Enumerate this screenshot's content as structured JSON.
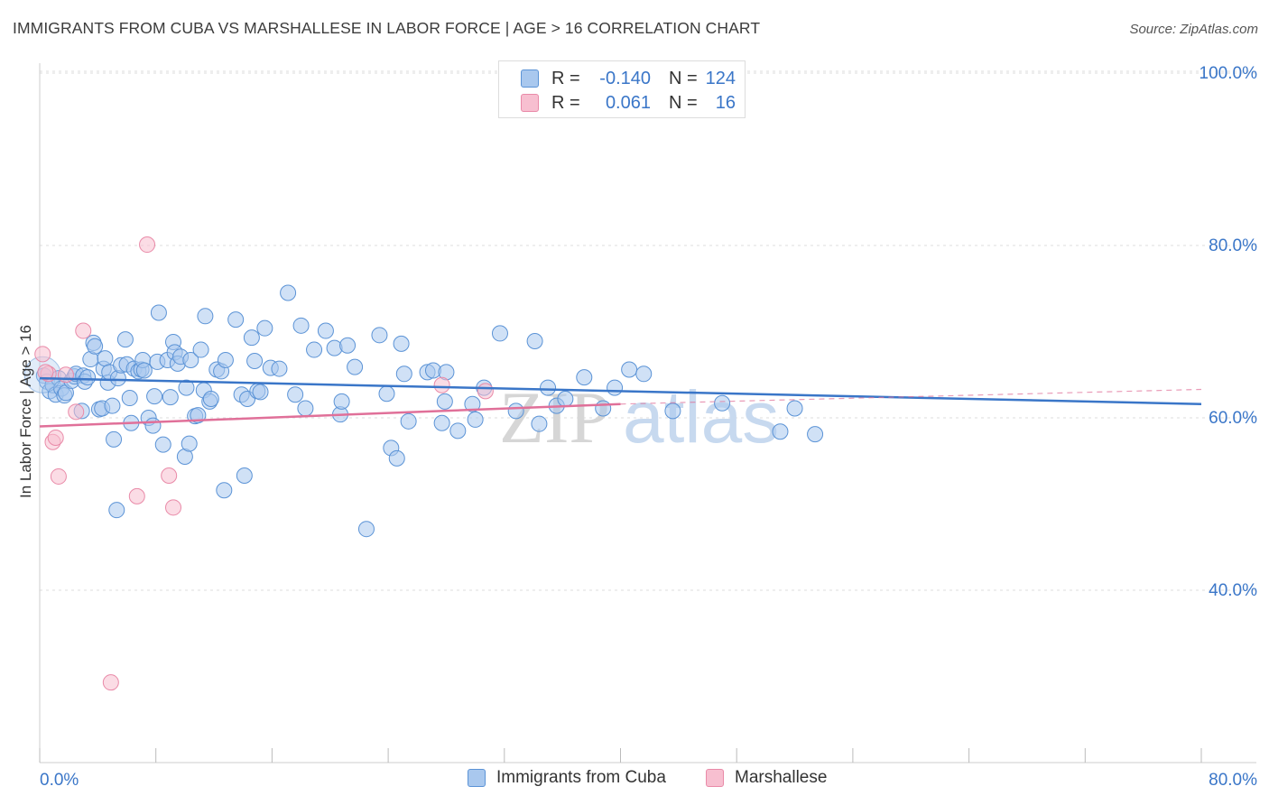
{
  "header": {
    "title": "IMMIGRANTS FROM CUBA VS MARSHALLESE IN LABOR FORCE | AGE > 16 CORRELATION CHART",
    "source": "Source: ZipAtlas.com"
  },
  "legend": {
    "rows": [
      {
        "r_label": "R =",
        "r_value": "-0.140",
        "n_label": "N =",
        "n_value": "124"
      },
      {
        "r_label": "R =",
        "r_value": "0.061",
        "n_label": "N =",
        "n_value": "16"
      }
    ]
  },
  "bottom_legend": [
    "Immigrants from Cuba",
    "Marshallese"
  ],
  "watermark": {
    "zip": "ZIP",
    "atlas": "atlas"
  },
  "colors": {
    "cuba_fill": "#a9c8ee",
    "cuba_stroke": "#5b93d6",
    "cuba_line": "#3a76c8",
    "marsh_fill": "#f7bfd0",
    "marsh_stroke": "#e98aa8",
    "marsh_line": "#e07099",
    "axis_text": "#3a76c8",
    "grid": "#dddddd"
  },
  "chart_data": {
    "type": "scatter",
    "title": "IMMIGRANTS FROM CUBA VS MARSHALLESE IN LABOR FORCE | AGE > 16 CORRELATION CHART",
    "ylabel": "In Labor Force | Age > 16",
    "xlabel": "",
    "xlim": [
      0,
      80
    ],
    "ylim": [
      22,
      104
    ],
    "x_tick_labels": [
      "0.0%",
      "80.0%"
    ],
    "y_ticks": [
      40,
      60,
      80,
      100
    ],
    "y_tick_labels": [
      "40.0%",
      "60.0%",
      "80.0%",
      "100.0%"
    ],
    "grid": true,
    "legend_position": "top-center",
    "series": [
      {
        "name": "Immigrants from Cuba",
        "r": -0.14,
        "n": 124,
        "trend": {
          "x": [
            0,
            80
          ],
          "y": [
            64.6,
            61.6
          ]
        },
        "points": [
          [
            0.3,
            64.9
          ],
          [
            0.5,
            64.2
          ],
          [
            0.7,
            63.1
          ],
          [
            0.9,
            63.8
          ],
          [
            1.1,
            62.7
          ],
          [
            1.3,
            64.6
          ],
          [
            1.5,
            63.4
          ],
          [
            1.7,
            62.6
          ],
          [
            1.8,
            62.9
          ],
          [
            2.2,
            64.3
          ],
          [
            2.4,
            64.8
          ],
          [
            2.5,
            65.1
          ],
          [
            2.9,
            60.8
          ],
          [
            3.0,
            64.9
          ],
          [
            3.1,
            64.2
          ],
          [
            3.3,
            64.7
          ],
          [
            3.5,
            66.8
          ],
          [
            3.7,
            68.7
          ],
          [
            3.8,
            68.3
          ],
          [
            4.1,
            61.0
          ],
          [
            4.3,
            61.1
          ],
          [
            4.4,
            65.7
          ],
          [
            4.5,
            66.9
          ],
          [
            4.7,
            64.1
          ],
          [
            4.8,
            65.3
          ],
          [
            5.0,
            61.4
          ],
          [
            5.1,
            57.5
          ],
          [
            5.3,
            49.3
          ],
          [
            5.4,
            64.6
          ],
          [
            5.6,
            66.1
          ],
          [
            5.9,
            69.1
          ],
          [
            6.0,
            66.2
          ],
          [
            6.2,
            62.3
          ],
          [
            6.3,
            59.4
          ],
          [
            6.5,
            65.7
          ],
          [
            6.8,
            65.4
          ],
          [
            7.0,
            65.6
          ],
          [
            7.1,
            66.7
          ],
          [
            7.2,
            65.5
          ],
          [
            7.5,
            60.0
          ],
          [
            7.8,
            59.1
          ],
          [
            7.9,
            62.5
          ],
          [
            8.1,
            66.5
          ],
          [
            8.2,
            72.2
          ],
          [
            8.5,
            56.9
          ],
          [
            8.8,
            66.7
          ],
          [
            9.0,
            62.4
          ],
          [
            9.2,
            68.8
          ],
          [
            9.3,
            67.6
          ],
          [
            9.5,
            66.3
          ],
          [
            9.7,
            67.1
          ],
          [
            10.0,
            55.5
          ],
          [
            10.1,
            63.5
          ],
          [
            10.3,
            57.0
          ],
          [
            10.4,
            66.7
          ],
          [
            10.7,
            60.2
          ],
          [
            10.9,
            60.3
          ],
          [
            11.1,
            67.9
          ],
          [
            11.3,
            63.2
          ],
          [
            11.4,
            71.8
          ],
          [
            11.7,
            61.9
          ],
          [
            11.8,
            62.2
          ],
          [
            12.2,
            65.6
          ],
          [
            12.5,
            65.4
          ],
          [
            12.7,
            51.6
          ],
          [
            12.8,
            66.7
          ],
          [
            13.5,
            71.4
          ],
          [
            13.9,
            62.7
          ],
          [
            14.1,
            53.3
          ],
          [
            14.3,
            62.2
          ],
          [
            14.6,
            69.3
          ],
          [
            14.8,
            66.6
          ],
          [
            15.0,
            63.1
          ],
          [
            15.2,
            63.0
          ],
          [
            15.5,
            70.4
          ],
          [
            15.9,
            65.8
          ],
          [
            16.5,
            65.7
          ],
          [
            17.1,
            74.5
          ],
          [
            17.6,
            62.7
          ],
          [
            18.0,
            70.7
          ],
          [
            18.3,
            61.1
          ],
          [
            18.9,
            67.9
          ],
          [
            19.7,
            70.1
          ],
          [
            20.3,
            68.1
          ],
          [
            20.7,
            60.4
          ],
          [
            20.8,
            61.9
          ],
          [
            21.2,
            68.4
          ],
          [
            21.7,
            65.9
          ],
          [
            22.5,
            47.1
          ],
          [
            23.4,
            69.6
          ],
          [
            23.9,
            62.8
          ],
          [
            24.2,
            56.5
          ],
          [
            24.6,
            55.3
          ],
          [
            24.9,
            68.6
          ],
          [
            25.1,
            65.1
          ],
          [
            25.4,
            59.6
          ],
          [
            26.7,
            65.3
          ],
          [
            27.1,
            65.5
          ],
          [
            27.7,
            59.4
          ],
          [
            27.9,
            61.9
          ],
          [
            28.0,
            65.3
          ],
          [
            28.8,
            58.5
          ],
          [
            29.8,
            61.6
          ],
          [
            30.0,
            59.8
          ],
          [
            30.6,
            63.5
          ],
          [
            31.7,
            69.8
          ],
          [
            32.8,
            60.8
          ],
          [
            34.1,
            68.9
          ],
          [
            34.4,
            59.3
          ],
          [
            35.0,
            63.5
          ],
          [
            35.6,
            61.4
          ],
          [
            36.2,
            62.2
          ],
          [
            37.5,
            64.7
          ],
          [
            38.8,
            61.1
          ],
          [
            39.6,
            63.5
          ],
          [
            40.6,
            65.6
          ],
          [
            41.6,
            65.1
          ],
          [
            43.6,
            60.8
          ],
          [
            47.0,
            61.7
          ],
          [
            51.0,
            58.4
          ],
          [
            52.0,
            61.1
          ],
          [
            53.4,
            58.1
          ]
        ]
      },
      {
        "name": "Marshallese",
        "r": 0.061,
        "n": 16,
        "trend": {
          "x": [
            0,
            40
          ],
          "y": [
            59.0,
            61.6
          ]
        },
        "trend_extension": {
          "x": [
            40,
            80
          ],
          "y": [
            61.6,
            63.3
          ]
        },
        "points": [
          [
            0.2,
            67.4
          ],
          [
            0.6,
            65.1
          ],
          [
            0.9,
            57.2
          ],
          [
            1.1,
            57.7
          ],
          [
            1.3,
            53.2
          ],
          [
            1.8,
            65.0
          ],
          [
            2.5,
            60.7
          ],
          [
            3.0,
            70.1
          ],
          [
            4.9,
            29.3
          ],
          [
            6.7,
            50.9
          ],
          [
            7.4,
            80.1
          ],
          [
            8.9,
            53.3
          ],
          [
            9.2,
            49.6
          ],
          [
            27.7,
            63.8
          ],
          [
            30.7,
            63.1
          ],
          [
            0.4,
            65.3
          ]
        ]
      }
    ]
  }
}
